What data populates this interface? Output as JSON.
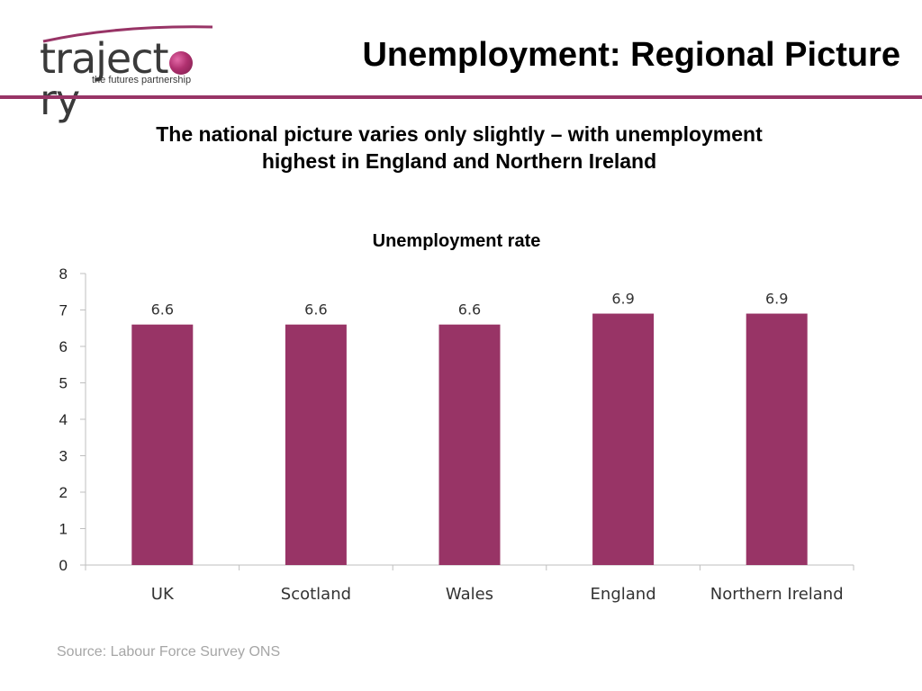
{
  "logo": {
    "word_left": "traject",
    "word_right": "ry",
    "tagline": "the futures partnership"
  },
  "header": {
    "title": "Unemployment: Regional Picture"
  },
  "subtitle": {
    "line1": "The national picture varies only slightly – with unemployment",
    "line2": "highest in England and Northern Ireland"
  },
  "chart_data": {
    "type": "bar",
    "title": "Unemployment rate",
    "categories": [
      "UK",
      "Scotland",
      "Wales",
      "England",
      "Northern Ireland"
    ],
    "values": [
      6.6,
      6.6,
      6.6,
      6.9,
      6.9
    ],
    "data_labels": [
      "6.6",
      "6.6",
      "6.6",
      "6.9",
      "6.9"
    ],
    "ylim": [
      0,
      8
    ],
    "yticks": [
      0,
      1,
      2,
      3,
      4,
      5,
      6,
      7,
      8
    ],
    "xlabel": "",
    "ylabel": "",
    "grid": false,
    "legend": "none",
    "bar_color": "#983466"
  },
  "source": "Source: Labour Force Survey ONS",
  "colors": {
    "accent": "#983466"
  }
}
